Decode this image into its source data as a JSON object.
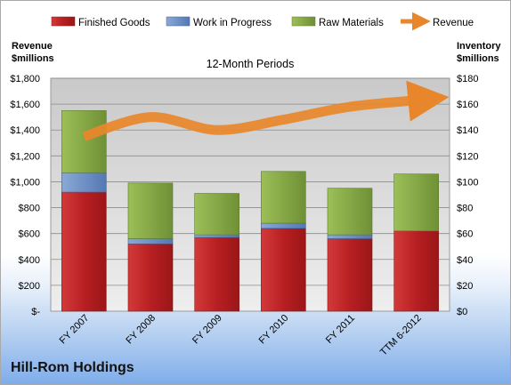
{
  "company": "Hill-Rom Holdings",
  "chart_data": {
    "type": "bar",
    "stacked": true,
    "subtitle": "12-Month Periods",
    "categories": [
      "FY 2007",
      "FY 2008",
      "FY 2009",
      "FY 2010",
      "FY 2011",
      "TTM 6-2012"
    ],
    "left_axis": {
      "label_line1": "Revenue",
      "label_line2": "$millions",
      "ylim": [
        0,
        1800
      ],
      "ticks": [
        0,
        200,
        400,
        600,
        800,
        1000,
        1200,
        1400,
        1600,
        1800
      ],
      "tick_labels": [
        "$-",
        "$200",
        "$400",
        "$600",
        "$800",
        "$1,000",
        "$1,200",
        "$1,400",
        "$1,600",
        "$1,800"
      ]
    },
    "right_axis": {
      "label_line1": "Inventory",
      "label_line2": "$millions",
      "ylim": [
        0,
        180
      ],
      "ticks": [
        0,
        20,
        40,
        60,
        80,
        100,
        120,
        140,
        160,
        180
      ],
      "tick_labels": [
        "$0",
        "$20",
        "$40",
        "$60",
        "$80",
        "$100",
        "$120",
        "$140",
        "$160",
        "$180"
      ]
    },
    "series": [
      {
        "name": "Finished Goods",
        "axis": "right",
        "kind": "bar",
        "color": "#c0282a",
        "values": [
          92,
          52,
          57,
          64,
          56,
          62
        ]
      },
      {
        "name": "Work in Progress",
        "axis": "right",
        "kind": "bar",
        "color": "#6a8ec6",
        "values": [
          15,
          4,
          2,
          4,
          3,
          0
        ]
      },
      {
        "name": "Raw Materials",
        "axis": "right",
        "kind": "bar",
        "color": "#89ad45",
        "values": [
          48,
          43,
          32,
          40,
          36,
          44
        ]
      },
      {
        "name": "Revenue",
        "axis": "left",
        "kind": "line",
        "color": "#e8862b",
        "values": [
          1350,
          1500,
          1400,
          1480,
          1580,
          1630
        ]
      }
    ],
    "grid": true,
    "legend_position": "top"
  }
}
